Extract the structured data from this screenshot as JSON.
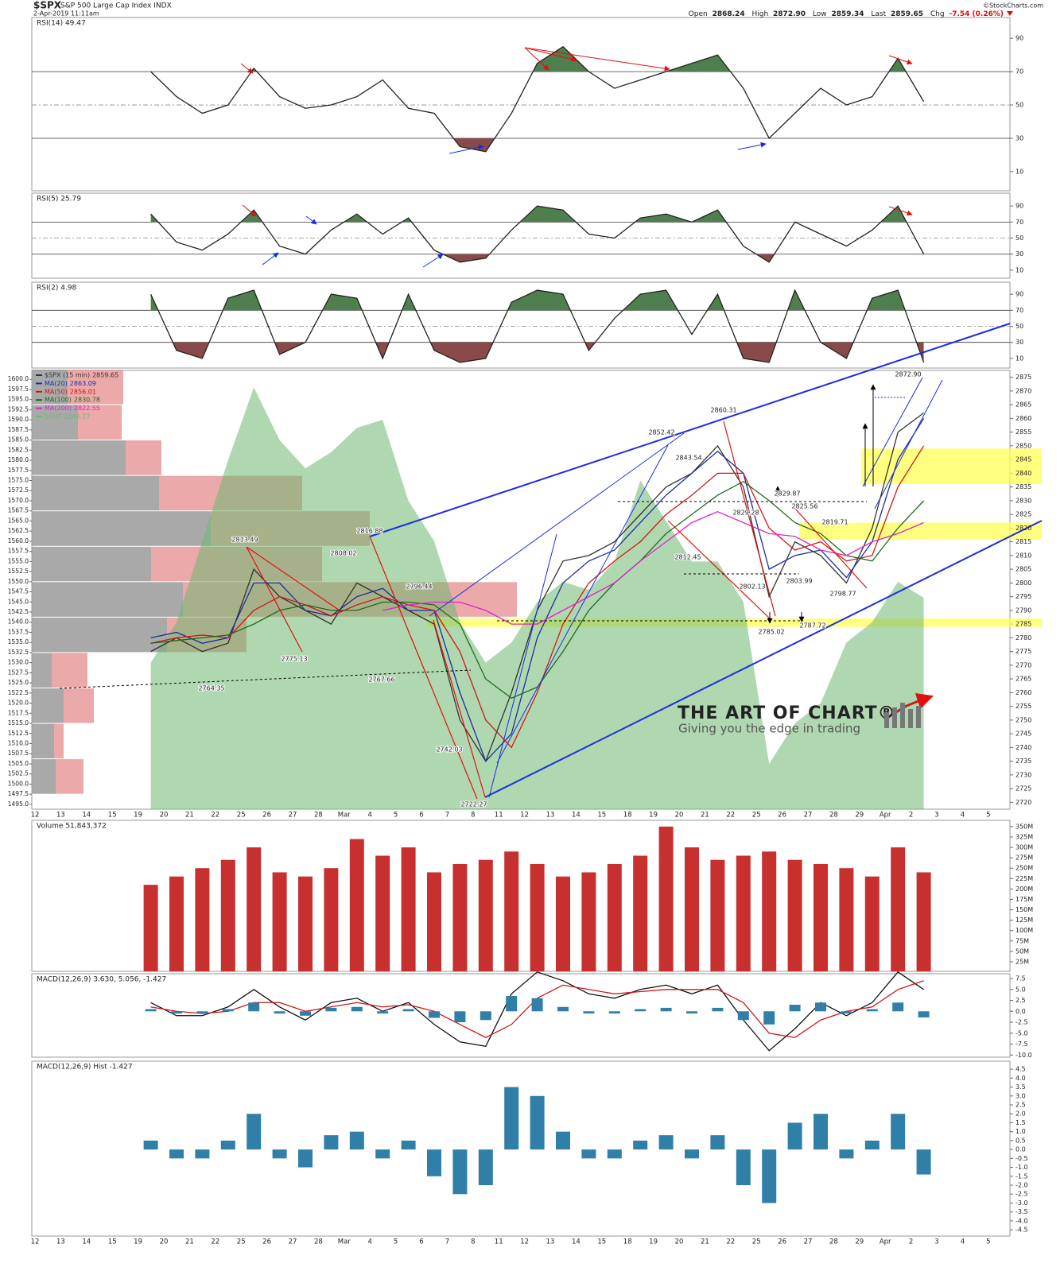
{
  "header": {
    "symbol": "$SPX",
    "name": "S&P 500 Large Cap Index INDX",
    "datetime": "2-Apr-2019 11:11am",
    "quote": [
      {
        "label": "Open",
        "value": "2868.24"
      },
      {
        "label": "High",
        "value": "2872.90"
      },
      {
        "label": "Low",
        "value": "2859.34"
      },
      {
        "label": "Last",
        "value": "2859.65"
      },
      {
        "label": "Chg",
        "value": "-7.54 (0.26%)"
      }
    ],
    "copyright": "©StockCharts.com"
  },
  "watermark": {
    "title": "THE ART OF CHART®",
    "subtitle": "Giving you the edge in trading"
  },
  "chart_data": [
    {
      "type": "line",
      "title": "RSI(14) 49.47",
      "color": "#222222",
      "values": [
        null,
        null,
        null,
        null,
        70,
        55,
        45,
        50,
        72,
        55,
        48,
        50,
        55,
        65,
        48,
        45,
        25,
        22,
        45,
        75,
        85,
        70,
        60,
        65,
        70,
        75,
        80,
        60,
        30,
        45,
        60,
        50,
        55,
        78,
        52,
        null,
        null,
        null
      ],
      "ylim": [
        -1.5,
        102.5
      ],
      "yticks": [
        10,
        30,
        50,
        70,
        90
      ],
      "overbought_color": "#4f7f4f",
      "oversold_color": "#8a4a4a"
    },
    {
      "type": "line",
      "title": "RSI(5) 25.79",
      "color": "#222222",
      "values": [
        null,
        null,
        null,
        null,
        80,
        45,
        35,
        55,
        85,
        40,
        30,
        60,
        80,
        55,
        75,
        35,
        20,
        25,
        60,
        90,
        85,
        55,
        50,
        75,
        80,
        70,
        85,
        40,
        20,
        70,
        55,
        40,
        60,
        90,
        30,
        null,
        null,
        null
      ],
      "ylim": [
        0,
        106
      ],
      "yticks": [
        10,
        30,
        50,
        70,
        90
      ],
      "overbought_color": "#4f7f4f",
      "oversold_color": "#8a4a4a"
    },
    {
      "type": "line",
      "title": "RSI(2) 4.98",
      "color": "#222222",
      "values": [
        null,
        null,
        null,
        null,
        90,
        20,
        10,
        85,
        95,
        15,
        30,
        90,
        85,
        10,
        90,
        20,
        5,
        10,
        80,
        95,
        90,
        20,
        60,
        90,
        95,
        40,
        90,
        10,
        5,
        95,
        30,
        10,
        85,
        95,
        5,
        null,
        null,
        null
      ],
      "ylim": [
        -2,
        105
      ],
      "yticks": [
        10,
        30,
        50,
        70,
        90
      ],
      "overbought_color": "#4f7f4f",
      "oversold_color": "#8a4a4a"
    },
    {
      "type": "line",
      "categories": [
        "12",
        "13",
        "14",
        "15",
        "19",
        "20",
        "21",
        "22",
        "25",
        "26",
        "27",
        "28",
        "Mar",
        "4",
        "5",
        "6",
        "7",
        "8",
        "11",
        "12",
        "13",
        "14",
        "15",
        "18",
        "19",
        "20",
        "21",
        "22",
        "25",
        "26",
        "27",
        "28",
        "29",
        "Apr",
        "2",
        "3",
        "4",
        "5"
      ],
      "series": [
        {
          "name": "$SPX (15 min)",
          "last": 2859.65,
          "color": "#333333",
          "values": [
            null,
            null,
            null,
            null,
            2775,
            2780,
            2775,
            2778,
            2805,
            2795,
            2790,
            2785,
            2800,
            2795,
            2790,
            2785,
            2750,
            2735,
            2760,
            2790,
            2808,
            2810,
            2815,
            2825,
            2835,
            2840,
            2850,
            2835,
            2795,
            2815,
            2810,
            2800,
            2820,
            2855,
            2862,
            null,
            null,
            null
          ]
        },
        {
          "name": "MA(20)",
          "last": 2863.09,
          "color": "#1a2fa0",
          "values": [
            null,
            null,
            null,
            null,
            2780,
            2782,
            2778,
            2780,
            2800,
            2800,
            2790,
            2788,
            2795,
            2798,
            2790,
            2790,
            2760,
            2735,
            2745,
            2780,
            2800,
            2808,
            2812,
            2822,
            2832,
            2840,
            2848,
            2840,
            2805,
            2810,
            2812,
            2802,
            2815,
            2845,
            2860,
            null,
            null,
            null
          ]
        },
        {
          "name": "MA(50)",
          "last": 2856.01,
          "color": "#d01818",
          "values": [
            null,
            null,
            null,
            null,
            2778,
            2780,
            2781,
            2780,
            2790,
            2795,
            2792,
            2788,
            2792,
            2795,
            2792,
            2790,
            2775,
            2750,
            2740,
            2760,
            2785,
            2800,
            2808,
            2815,
            2825,
            2832,
            2840,
            2840,
            2820,
            2812,
            2815,
            2808,
            2810,
            2835,
            2850,
            null,
            null,
            null
          ]
        },
        {
          "name": "MA(100)",
          "last": 2830.78,
          "color": "#1f6a1f",
          "values": [
            null,
            null,
            null,
            null,
            2778,
            2779,
            2780,
            2781,
            2785,
            2790,
            2792,
            2790,
            2790,
            2793,
            2793,
            2792,
            2785,
            2765,
            2758,
            2762,
            2775,
            2790,
            2800,
            2808,
            2818,
            2825,
            2832,
            2837,
            2830,
            2822,
            2818,
            2810,
            2808,
            2820,
            2830,
            null,
            null,
            null
          ]
        },
        {
          "name": "MA(200)",
          "last": 2822.55,
          "color": "#e020d0",
          "values": [
            null,
            null,
            null,
            null,
            null,
            null,
            null,
            null,
            null,
            null,
            null,
            null,
            null,
            2790,
            2792,
            2793,
            2793,
            2790,
            2785,
            2785,
            2790,
            2795,
            2800,
            2808,
            2815,
            2822,
            2826,
            2822,
            2818,
            2817,
            2812,
            2810,
            2815,
            2818,
            2822,
            null,
            null,
            null
          ]
        },
        {
          "name": "$RUT",
          "last": 1546.27,
          "color": "#6fb86f",
          "axis": "y2",
          "area": true,
          "values": [
            null,
            null,
            null,
            null,
            1530,
            1540,
            1560,
            1580,
            1598,
            1585,
            1578,
            1582,
            1588,
            1590,
            1570,
            1560,
            1540,
            1530,
            1535,
            1545,
            1550,
            1548,
            1555,
            1575,
            1565,
            1555,
            1555,
            1545,
            1505,
            1515,
            1520,
            1535,
            1540,
            1550,
            1546,
            null,
            null,
            null
          ]
        }
      ],
      "ylim": [
        2717.5,
        2877.5
      ],
      "yticks": [
        2720,
        2725,
        2730,
        2735,
        2740,
        2745,
        2750,
        2755,
        2760,
        2765,
        2770,
        2775,
        2780,
        2785,
        2790,
        2795,
        2800,
        2805,
        2810,
        2815,
        2820,
        2825,
        2830,
        2835,
        2840,
        2845,
        2850,
        2855,
        2860,
        2865,
        2870,
        2875
      ],
      "y2lim": [
        1493.8,
        1602.2
      ],
      "y2ticks": [
        {
          "value": 1495,
          "label": "1495.0"
        },
        1497.5,
        {
          "value": 1500,
          "label": "1500.0"
        },
        1502.5,
        {
          "value": 1505,
          "label": "1505.0"
        },
        1507.5,
        {
          "value": 1510,
          "label": "1510.0"
        },
        1512.5,
        {
          "value": 1515,
          "label": "1515.0"
        },
        1517.5,
        {
          "value": 1520,
          "label": "1520.0"
        },
        1522.5,
        {
          "value": 1525,
          "label": "1525.0"
        },
        1527.5,
        {
          "value": 1530,
          "label": "1530.0"
        },
        1532.5,
        {
          "value": 1535,
          "label": "1535.0"
        },
        1537.5,
        {
          "value": 1540,
          "label": "1540.0"
        },
        1542.5,
        {
          "value": 1545,
          "label": "1545.0"
        },
        1547.5,
        {
          "value": 1550,
          "label": "1550.0"
        },
        1552.5,
        {
          "value": 1555,
          "label": "1555.0"
        },
        1557.5,
        {
          "value": 1560,
          "label": "1560.0"
        },
        1562.5,
        {
          "value": 1565,
          "label": "1565.0"
        },
        1567.5,
        {
          "value": 1570,
          "label": "1570.0"
        },
        1572.5,
        {
          "value": 1575,
          "label": "1575.0"
        },
        1577.5,
        {
          "value": 1580,
          "label": "1580.0"
        },
        1582.5,
        {
          "value": 1585,
          "label": "1585.0"
        },
        1587.5,
        {
          "value": 1590,
          "label": "1590.0"
        },
        1592.5,
        {
          "value": 1595,
          "label": "1595.0"
        },
        1597.5,
        {
          "value": 1600,
          "label": "1600.0"
        }
      ],
      "annotations": [
        2813.49,
        2764.35,
        2775.13,
        2808.02,
        2816.88,
        2767.66,
        2796.44,
        2742.03,
        2722.27,
        2852.42,
        2843.54,
        2860.31,
        2812.45,
        2829.28,
        2802.13,
        2829.87,
        2825.56,
        2803.99,
        2785.02,
        2787.72,
        2819.71,
        2798.77,
        2872.9
      ],
      "annotation_labels": [
        null,
        null,
        null,
        null,
        null,
        null,
        null,
        null,
        null,
        null,
        null,
        null,
        null,
        null,
        null,
        null,
        null,
        null,
        null,
        null,
        null,
        null,
        "2872.90"
      ],
      "highlight_zones": [
        [
          2836,
          2849
        ],
        [
          2816,
          2822
        ],
        [
          2784,
          2787
        ]
      ],
      "zone_color": "#ffff55",
      "volume_by_price": {
        "bins": [
          1497.5,
          1506.25,
          1515,
          1523.75,
          1532.5,
          1541.25,
          1550,
          1558.75,
          1567.5,
          1576.25,
          1585,
          1593.75,
          1602.5
        ],
        "xlim": [
          0,
          1230
        ],
        "segments": [
          {
            "color": "#9a9a9a",
            "values": [
              30,
              28,
              40,
              25,
              170,
              190,
              150,
              225,
              160,
              118,
              58,
              45
            ]
          },
          {
            "color": "#e79a9a",
            "values": [
              35,
              12,
              38,
              45,
              100,
              420,
              215,
              200,
              180,
              45,
              55,
              70
            ]
          }
        ]
      }
    },
    {
      "type": "bar",
      "title": "Volume 51,843,372",
      "color": "#c83030",
      "values": [
        null,
        null,
        null,
        null,
        210,
        230,
        250,
        270,
        300,
        240,
        230,
        250,
        320,
        280,
        300,
        240,
        260,
        270,
        290,
        260,
        230,
        240,
        260,
        280,
        350,
        300,
        270,
        280,
        290,
        270,
        260,
        250,
        230,
        300,
        240,
        null,
        null,
        null
      ],
      "ylim": [
        2,
        365
      ],
      "yticks": [
        {
          "value": 25,
          "label": "25M"
        },
        {
          "value": 50,
          "label": "50M"
        },
        {
          "value": 75,
          "label": "75M"
        },
        {
          "value": 100,
          "label": "100M"
        },
        {
          "value": 125,
          "label": "125M"
        },
        {
          "value": 150,
          "label": "150M"
        },
        {
          "value": 175,
          "label": "175M"
        },
        {
          "value": 200,
          "label": "200M"
        },
        {
          "value": 225,
          "label": "225M"
        },
        {
          "value": 250,
          "label": "250M"
        },
        {
          "value": 275,
          "label": "275M"
        },
        {
          "value": 300,
          "label": "300M"
        },
        {
          "value": 325,
          "label": "325M"
        },
        {
          "value": 350,
          "label": "350M"
        }
      ]
    },
    {
      "type": "line",
      "title": "MACD(12,26,9) 3.630, 5.056, -1.427",
      "series": [
        {
          "color": "#111111",
          "values": [
            null,
            null,
            null,
            null,
            2,
            -1,
            -1,
            1,
            5,
            1,
            -2,
            2,
            3,
            0,
            2,
            -3,
            -7,
            -8,
            4,
            9,
            7,
            4,
            3,
            5,
            6,
            4,
            6,
            -2,
            -9,
            -4,
            2,
            -1,
            2,
            9,
            5,
            null,
            null,
            null
          ]
        },
        {
          "color": "#d01818",
          "values": [
            null,
            null,
            null,
            null,
            1,
            0,
            -0.5,
            0,
            2,
            2,
            0,
            1,
            2,
            1,
            1.5,
            0,
            -3,
            -6,
            -3,
            3,
            6,
            5,
            4,
            4.5,
            5,
            5,
            5,
            2,
            -5,
            -6,
            -2,
            0,
            1,
            5,
            7,
            null,
            null,
            null
          ]
        }
      ],
      "ylim": [
        -10.5,
        8.6
      ],
      "yticks": [
        {
          "value": -10,
          "label": "-10.0"
        },
        -7.5,
        {
          "value": -5,
          "label": "-5.0"
        },
        -2.5,
        {
          "value": 0,
          "label": "0.0"
        },
        2.5,
        {
          "value": 5,
          "label": "5.0"
        },
        7.5
      ]
    },
    {
      "type": "bar",
      "title": "MACD(12,26,9) Hist -1.427",
      "color": "#2f7fa8",
      "categories": [
        "12",
        "13",
        "14",
        "15",
        "19",
        "20",
        "21",
        "22",
        "25",
        "26",
        "27",
        "28",
        "Mar",
        "4",
        "5",
        "6",
        "7",
        "8",
        "11",
        "12",
        "13",
        "14",
        "15",
        "18",
        "19",
        "20",
        "21",
        "22",
        "25",
        "26",
        "27",
        "28",
        "29",
        "Apr",
        "2",
        "3",
        "4",
        "5"
      ],
      "values": [
        null,
        null,
        null,
        null,
        0.5,
        -0.5,
        -0.5,
        0.5,
        2,
        -0.5,
        -1,
        0.8,
        1,
        -0.5,
        0.5,
        -1.5,
        -2.5,
        -2,
        3.5,
        3,
        1,
        -0.5,
        -0.5,
        0.5,
        0.8,
        -0.5,
        0.8,
        -2,
        -3,
        1.5,
        2,
        -0.5,
        0.5,
        2,
        -1.4,
        null,
        null,
        null
      ],
      "ylim": [
        -4.85,
        4.95
      ],
      "yticks": [
        -4.5,
        {
          "value": -4,
          "label": "-4.0"
        },
        -3.5,
        {
          "value": -3,
          "label": "-3.0"
        },
        -2.5,
        {
          "value": -2,
          "label": "-2.0"
        },
        -1.5,
        {
          "value": -1,
          "label": "-1.0"
        },
        -0.5,
        {
          "value": 0,
          "label": "0.0"
        },
        0.5,
        {
          "value": 1,
          "label": "1.0"
        },
        1.5,
        {
          "value": 2,
          "label": "2.0"
        },
        2.5,
        {
          "value": 3,
          "label": "3.0"
        },
        3.5,
        {
          "value": 4,
          "label": "4.0"
        },
        4.5
      ]
    }
  ]
}
